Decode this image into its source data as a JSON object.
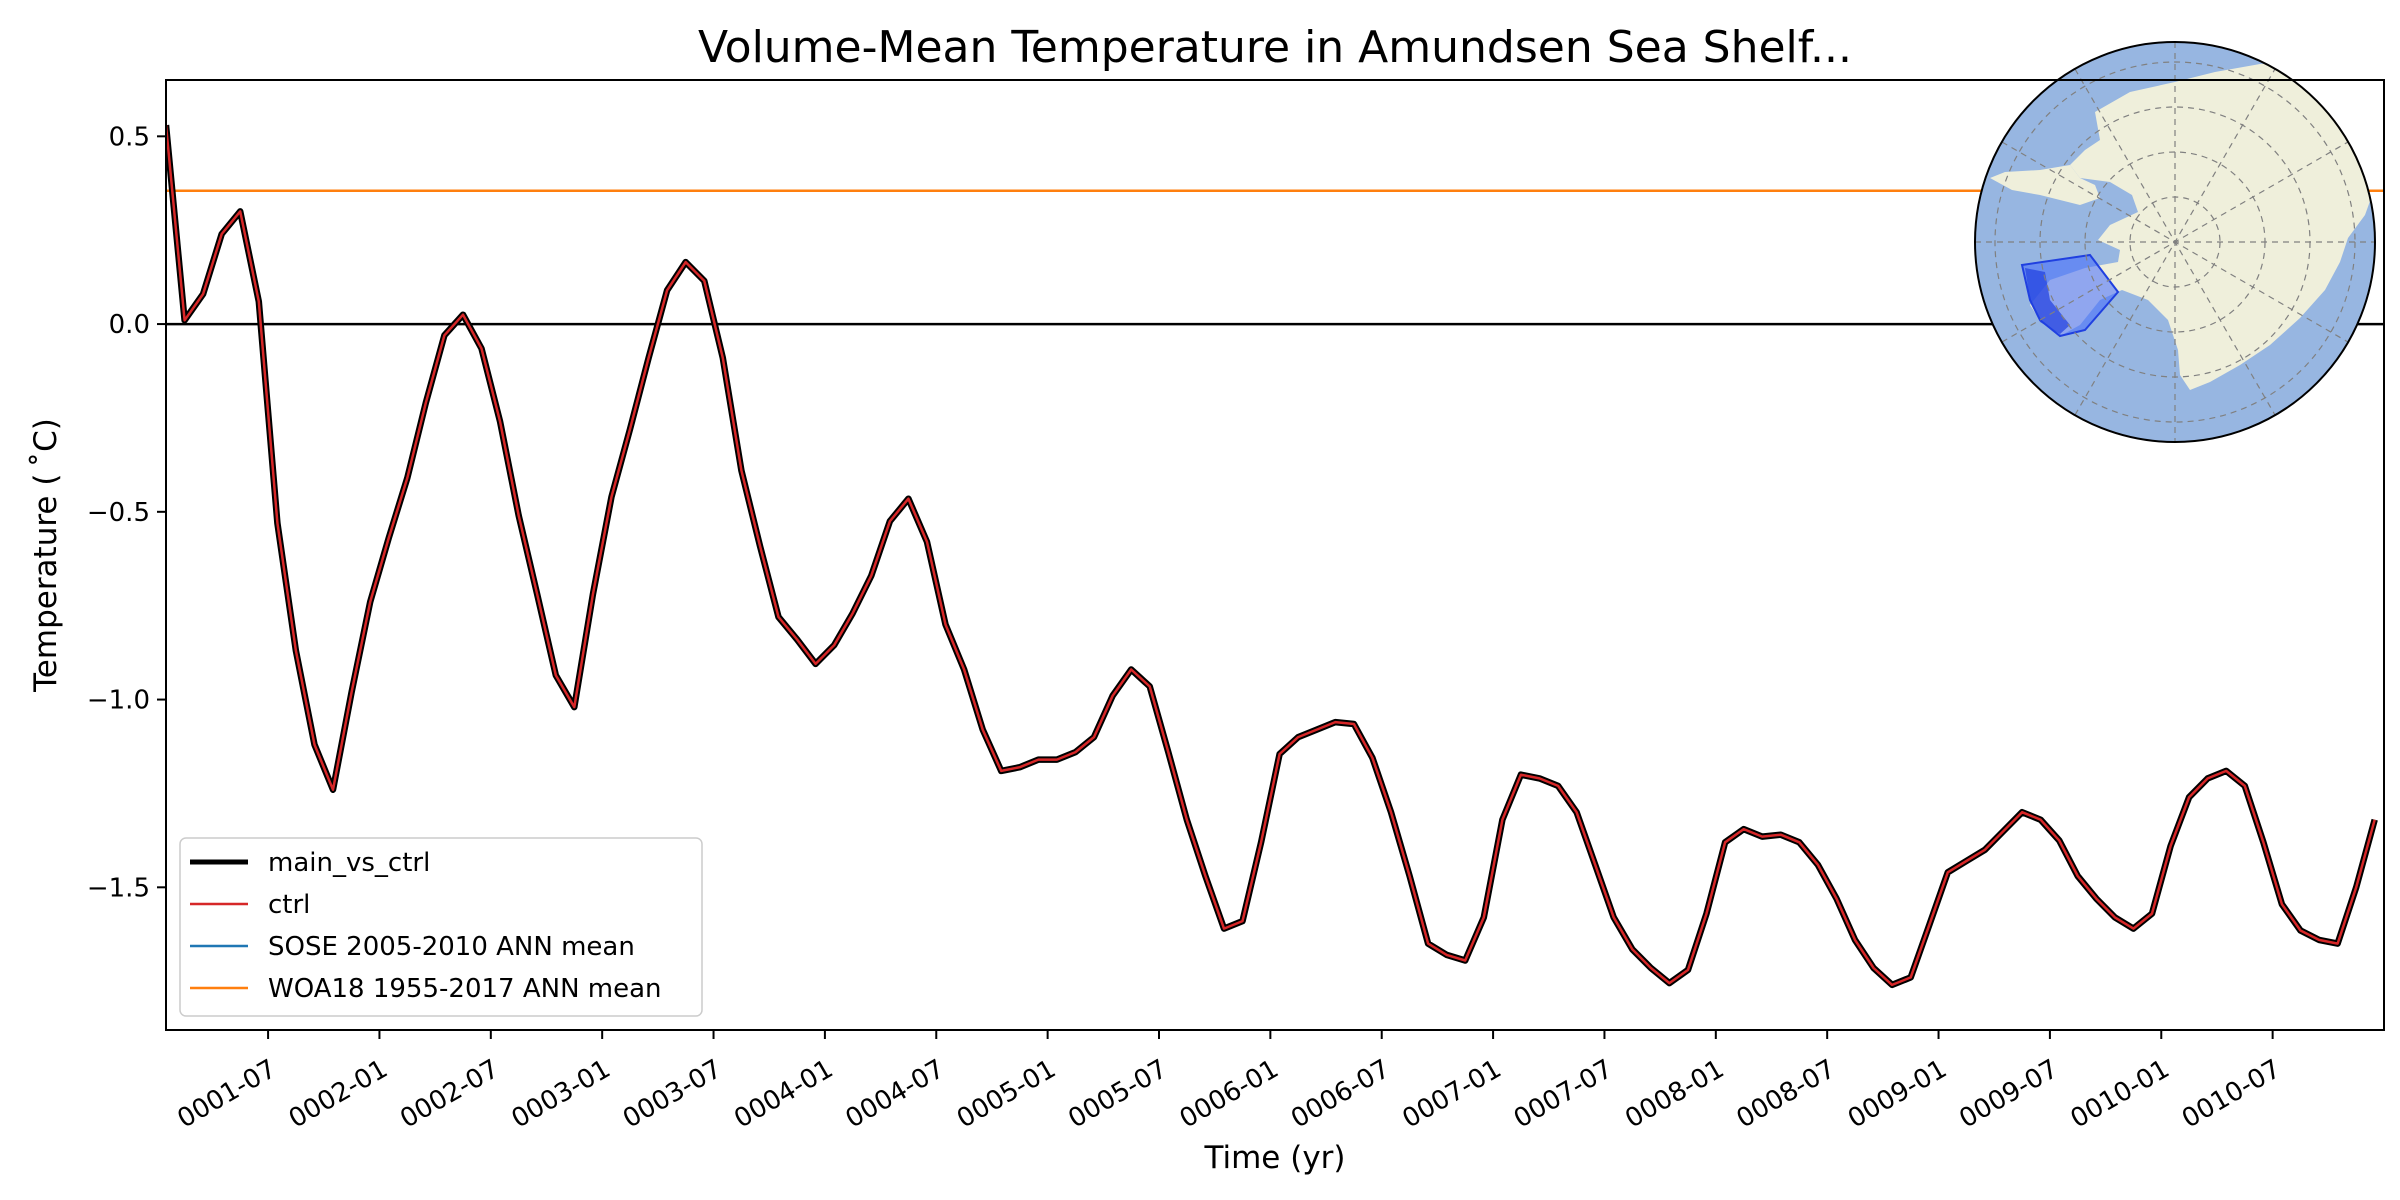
{
  "chart_data": {
    "type": "line",
    "title": "Volume-Mean Temperature in Amundsen Sea Shelf...",
    "xlabel": "Time (yr)",
    "ylabel": "Temperature ($^\\circ$C)",
    "ylabel_display": "Temperature ( ˚C)",
    "ylim": [
      -1.88,
      0.65
    ],
    "xlim": [
      0,
      119.5
    ],
    "yticks": [
      0.5,
      0.0,
      -0.5,
      -1.0,
      -1.5
    ],
    "ytick_labels": [
      "0.5",
      "0.0",
      "−0.5",
      "−1.0",
      "−1.5"
    ],
    "xticks": [
      5.5,
      11.5,
      17.5,
      23.5,
      29.5,
      35.5,
      41.5,
      47.5,
      53.5,
      59.5,
      65.5,
      71.5,
      77.5,
      83.5,
      89.5,
      95.5,
      101.5,
      107.5,
      113.5
    ],
    "xtick_labels": [
      "0001-07",
      "0002-01",
      "0002-07",
      "0003-01",
      "0003-07",
      "0004-01",
      "0004-07",
      "0005-01",
      "0005-07",
      "0006-01",
      "0006-07",
      "0007-01",
      "0007-07",
      "0008-01",
      "0008-07",
      "0009-01",
      "0009-07",
      "0010-01",
      "0010-07"
    ],
    "reference_lines": [
      {
        "name": "zero-line",
        "y": 0.0,
        "color": "#000000"
      },
      {
        "name": "woa18-mean-line",
        "y": 0.355,
        "color": "#ff7f0e"
      }
    ],
    "x": [
      0,
      1,
      2,
      3,
      4,
      5,
      6,
      7,
      8,
      9,
      10,
      11,
      12,
      13,
      14,
      15,
      16,
      17,
      18,
      19,
      20,
      21,
      22,
      23,
      24,
      25,
      26,
      27,
      28,
      29,
      30,
      31,
      32,
      33,
      34,
      35,
      36,
      37,
      38,
      39,
      40,
      41,
      42,
      43,
      44,
      45,
      46,
      47,
      48,
      49,
      50,
      51,
      52,
      53,
      54,
      55,
      56,
      57,
      58,
      59,
      60,
      61,
      62,
      63,
      64,
      65,
      66,
      67,
      68,
      69,
      70,
      71,
      72,
      73,
      74,
      75,
      76,
      77,
      78,
      79,
      80,
      81,
      82,
      83,
      84,
      85,
      86,
      87,
      88,
      89,
      90,
      91,
      92,
      93,
      94,
      95,
      96,
      97,
      98,
      99,
      100,
      101,
      102,
      103,
      104,
      105,
      106,
      107,
      108,
      109,
      110,
      111,
      112,
      113,
      114,
      115,
      116,
      117,
      118,
      119
    ],
    "series": [
      {
        "name": "main_vs_ctrl",
        "color": "#000000",
        "values": [
          0.53,
          0.01,
          0.08,
          0.24,
          0.3,
          0.06,
          -0.53,
          -0.87,
          -1.12,
          -1.24,
          -0.98,
          -0.74,
          -0.57,
          -0.41,
          -0.21,
          -0.03,
          0.025,
          -0.065,
          -0.26,
          -0.51,
          -0.72,
          -0.935,
          -1.02,
          -0.72,
          -0.46,
          -0.28,
          -0.09,
          0.09,
          0.165,
          0.115,
          -0.09,
          -0.39,
          -0.59,
          -0.78,
          -0.84,
          -0.905,
          -0.855,
          -0.77,
          -0.67,
          -0.525,
          -0.465,
          -0.58,
          -0.8,
          -0.92,
          -1.08,
          -1.19,
          -1.18,
          -1.16,
          -1.16,
          -1.14,
          -1.1,
          -0.99,
          -0.92,
          -0.965,
          -1.14,
          -1.32,
          -1.47,
          -1.61,
          -1.59,
          -1.38,
          -1.145,
          -1.1,
          -1.08,
          -1.06,
          -1.065,
          -1.155,
          -1.3,
          -1.47,
          -1.65,
          -1.68,
          -1.695,
          -1.58,
          -1.32,
          -1.2,
          -1.21,
          -1.23,
          -1.3,
          -1.44,
          -1.58,
          -1.665,
          -1.715,
          -1.755,
          -1.72,
          -1.57,
          -1.38,
          -1.345,
          -1.365,
          -1.36,
          -1.38,
          -1.44,
          -1.53,
          -1.64,
          -1.715,
          -1.76,
          -1.74,
          -1.6,
          -1.46,
          -1.43,
          -1.4,
          -1.35,
          -1.3,
          -1.32,
          -1.375,
          -1.47,
          -1.53,
          -1.58,
          -1.61,
          -1.57,
          -1.39,
          -1.26,
          -1.21,
          -1.19,
          -1.23,
          -1.38,
          -1.545,
          -1.615,
          -1.64,
          -1.65,
          -1.5,
          -1.32
        ]
      },
      {
        "name": "ctrl",
        "color": "#d62728",
        "values": [
          0.53,
          0.01,
          0.08,
          0.24,
          0.3,
          0.06,
          -0.53,
          -0.87,
          -1.12,
          -1.24,
          -0.98,
          -0.74,
          -0.57,
          -0.41,
          -0.21,
          -0.03,
          0.025,
          -0.065,
          -0.26,
          -0.51,
          -0.72,
          -0.935,
          -1.02,
          -0.72,
          -0.46,
          -0.28,
          -0.09,
          0.09,
          0.165,
          0.115,
          -0.09,
          -0.39,
          -0.59,
          -0.78,
          -0.84,
          -0.905,
          -0.855,
          -0.77,
          -0.67,
          -0.525,
          -0.465,
          -0.58,
          -0.8,
          -0.92,
          -1.08,
          -1.19,
          -1.18,
          -1.16,
          -1.16,
          -1.14,
          -1.1,
          -0.99,
          -0.92,
          -0.965,
          -1.14,
          -1.32,
          -1.47,
          -1.61,
          -1.59,
          -1.38,
          -1.145,
          -1.1,
          -1.08,
          -1.06,
          -1.065,
          -1.155,
          -1.3,
          -1.47,
          -1.65,
          -1.68,
          -1.695,
          -1.58,
          -1.32,
          -1.2,
          -1.21,
          -1.23,
          -1.3,
          -1.44,
          -1.58,
          -1.665,
          -1.715,
          -1.755,
          -1.72,
          -1.57,
          -1.38,
          -1.345,
          -1.365,
          -1.36,
          -1.38,
          -1.44,
          -1.53,
          -1.64,
          -1.715,
          -1.76,
          -1.74,
          -1.6,
          -1.46,
          -1.43,
          -1.4,
          -1.35,
          -1.3,
          -1.32,
          -1.375,
          -1.47,
          -1.53,
          -1.58,
          -1.61,
          -1.57,
          -1.39,
          -1.26,
          -1.21,
          -1.19,
          -1.23,
          -1.38,
          -1.545,
          -1.615,
          -1.64,
          -1.65,
          -1.5,
          -1.32
        ]
      }
    ],
    "legend": {
      "location": "lower-left",
      "entries": [
        {
          "label": "main_vs_ctrl",
          "color": "#000000",
          "style": "thick"
        },
        {
          "label": "ctrl",
          "color": "#d62728",
          "style": "thin"
        },
        {
          "label": "SOSE 2005-2010 ANN mean",
          "color": "#1f77b4",
          "style": "thin"
        },
        {
          "label": "WOA18 1955-2017 ANN mean",
          "color": "#ff7f0e",
          "style": "thin"
        }
      ]
    },
    "inset_map": {
      "type": "south-polar-stereographic",
      "location": "top-right",
      "ocean_color": "#97b6e1",
      "land_color": "#efefdb",
      "highlight_color": "#4169ff",
      "highlighted_region": "Amundsen Sea Shelf"
    }
  }
}
